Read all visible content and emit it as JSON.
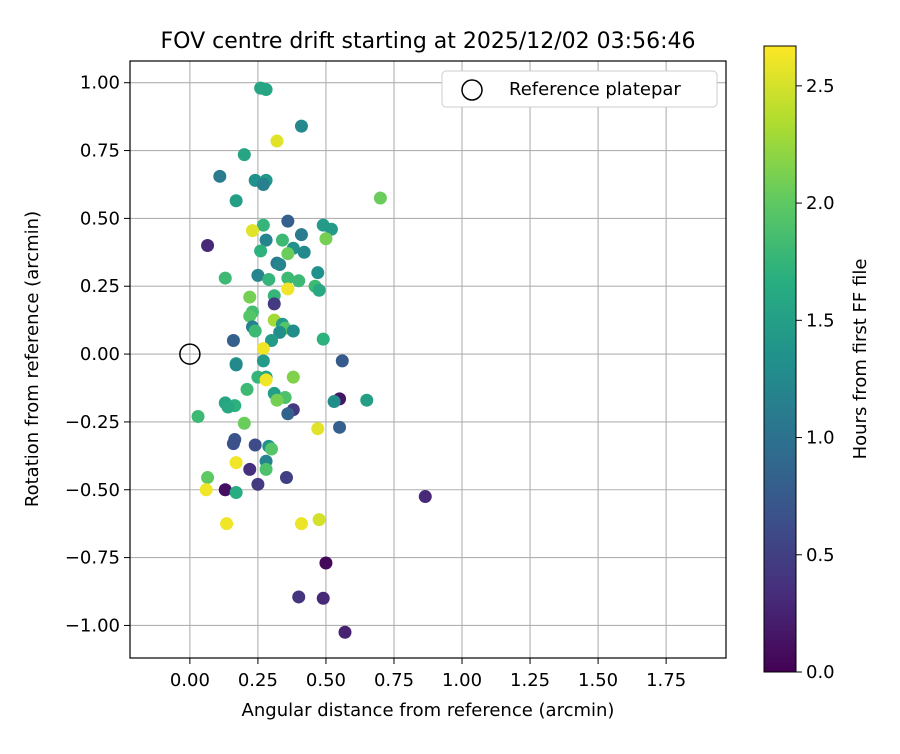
{
  "chart_data": {
    "type": "scatter",
    "title": "FOV centre drift starting at 2025/12/02 03:56:46",
    "xlabel": "Angular distance from reference (arcmin)",
    "ylabel": "Rotation from reference (arcmin)",
    "xlim": [
      -0.22,
      1.97
    ],
    "ylim": [
      -1.12,
      1.08
    ],
    "grid": true,
    "xticks": [
      0.0,
      0.25,
      0.5,
      0.75,
      1.0,
      1.25,
      1.5,
      1.75
    ],
    "xtick_labels": [
      "0.00",
      "0.25",
      "0.50",
      "0.75",
      "1.00",
      "1.25",
      "1.50",
      "1.75"
    ],
    "yticks": [
      -1.0,
      -0.75,
      -0.5,
      -0.25,
      0.0,
      0.25,
      0.5,
      0.75,
      1.0
    ],
    "ytick_labels": [
      "−1.00",
      "−0.75",
      "−0.50",
      "−0.25",
      "0.00",
      "0.25",
      "0.50",
      "0.75",
      "1.00"
    ],
    "legend": {
      "label": "Reference platepar",
      "position": "top-right"
    },
    "reference": {
      "x": 0.0,
      "y": 0.0
    },
    "colorbar": {
      "label": "Hours from first FF file",
      "colormap": "viridis",
      "range": [
        0.0,
        2.67
      ],
      "ticks": [
        0.0,
        0.5,
        1.0,
        1.5,
        2.0,
        2.5
      ],
      "tick_labels": [
        "0.0",
        "0.5",
        "1.0",
        "1.5",
        "2.0",
        "2.5"
      ]
    },
    "points": [
      {
        "x": 0.26,
        "y": 0.98,
        "c": 1.55
      },
      {
        "x": 0.28,
        "y": 0.975,
        "c": 1.55
      },
      {
        "x": 0.41,
        "y": 0.84,
        "c": 1.25
      },
      {
        "x": 0.32,
        "y": 0.785,
        "c": 2.55
      },
      {
        "x": 0.2,
        "y": 0.735,
        "c": 1.55
      },
      {
        "x": 0.11,
        "y": 0.655,
        "c": 1.1
      },
      {
        "x": 0.24,
        "y": 0.64,
        "c": 1.35
      },
      {
        "x": 0.28,
        "y": 0.64,
        "c": 1.4
      },
      {
        "x": 0.27,
        "y": 0.625,
        "c": 1.15
      },
      {
        "x": 0.7,
        "y": 0.575,
        "c": 2.05
      },
      {
        "x": 0.17,
        "y": 0.565,
        "c": 1.5
      },
      {
        "x": 0.36,
        "y": 0.49,
        "c": 0.8
      },
      {
        "x": 0.49,
        "y": 0.475,
        "c": 1.45
      },
      {
        "x": 0.27,
        "y": 0.475,
        "c": 1.75
      },
      {
        "x": 0.23,
        "y": 0.455,
        "c": 2.55
      },
      {
        "x": 0.52,
        "y": 0.46,
        "c": 1.45
      },
      {
        "x": 0.41,
        "y": 0.44,
        "c": 1.1
      },
      {
        "x": 0.5,
        "y": 0.425,
        "c": 2.1
      },
      {
        "x": 0.28,
        "y": 0.42,
        "c": 1.2
      },
      {
        "x": 0.34,
        "y": 0.42,
        "c": 1.8
      },
      {
        "x": 0.065,
        "y": 0.4,
        "c": 0.3
      },
      {
        "x": 0.38,
        "y": 0.39,
        "c": 1.35
      },
      {
        "x": 0.42,
        "y": 0.375,
        "c": 1.25
      },
      {
        "x": 0.26,
        "y": 0.38,
        "c": 1.7
      },
      {
        "x": 0.36,
        "y": 0.37,
        "c": 2.05
      },
      {
        "x": 0.32,
        "y": 0.335,
        "c": 1.1
      },
      {
        "x": 0.33,
        "y": 0.33,
        "c": 1.2
      },
      {
        "x": 0.47,
        "y": 0.3,
        "c": 1.35
      },
      {
        "x": 0.25,
        "y": 0.29,
        "c": 1.2
      },
      {
        "x": 0.13,
        "y": 0.28,
        "c": 1.8
      },
      {
        "x": 0.29,
        "y": 0.275,
        "c": 1.75
      },
      {
        "x": 0.36,
        "y": 0.28,
        "c": 1.8
      },
      {
        "x": 0.4,
        "y": 0.27,
        "c": 1.8
      },
      {
        "x": 0.46,
        "y": 0.25,
        "c": 1.8
      },
      {
        "x": 0.475,
        "y": 0.235,
        "c": 1.6
      },
      {
        "x": 0.36,
        "y": 0.24,
        "c": 2.62
      },
      {
        "x": 0.22,
        "y": 0.21,
        "c": 2.1
      },
      {
        "x": 0.31,
        "y": 0.215,
        "c": 1.75
      },
      {
        "x": 0.31,
        "y": 0.185,
        "c": 0.45
      },
      {
        "x": 0.23,
        "y": 0.155,
        "c": 1.85
      },
      {
        "x": 0.22,
        "y": 0.14,
        "c": 1.95
      },
      {
        "x": 0.31,
        "y": 0.125,
        "c": 2.3
      },
      {
        "x": 0.23,
        "y": 0.1,
        "c": 1.15
      },
      {
        "x": 0.34,
        "y": 0.11,
        "c": 1.45
      },
      {
        "x": 0.35,
        "y": 0.095,
        "c": 1.95
      },
      {
        "x": 0.24,
        "y": 0.085,
        "c": 1.8
      },
      {
        "x": 0.33,
        "y": 0.08,
        "c": 1.3
      },
      {
        "x": 0.38,
        "y": 0.085,
        "c": 1.3
      },
      {
        "x": 0.16,
        "y": 0.05,
        "c": 0.8
      },
      {
        "x": 0.3,
        "y": 0.05,
        "c": 1.45
      },
      {
        "x": 0.49,
        "y": 0.055,
        "c": 1.7
      },
      {
        "x": 0.27,
        "y": 0.02,
        "c": 2.62
      },
      {
        "x": 0.56,
        "y": -0.025,
        "c": 0.75
      },
      {
        "x": 0.27,
        "y": -0.025,
        "c": 1.45
      },
      {
        "x": 0.17,
        "y": -0.035,
        "c": 1.55
      },
      {
        "x": 0.17,
        "y": -0.04,
        "c": 1.25
      },
      {
        "x": 0.25,
        "y": -0.085,
        "c": 1.75
      },
      {
        "x": 0.28,
        "y": -0.085,
        "c": 1.55
      },
      {
        "x": 0.38,
        "y": -0.085,
        "c": 2.15
      },
      {
        "x": 0.28,
        "y": -0.095,
        "c": 2.62
      },
      {
        "x": 0.21,
        "y": -0.13,
        "c": 1.8
      },
      {
        "x": 0.31,
        "y": -0.145,
        "c": 1.5
      },
      {
        "x": 0.35,
        "y": -0.16,
        "c": 1.9
      },
      {
        "x": 0.55,
        "y": -0.165,
        "c": 0.15
      },
      {
        "x": 0.32,
        "y": -0.17,
        "c": 2.1
      },
      {
        "x": 0.53,
        "y": -0.175,
        "c": 1.3
      },
      {
        "x": 0.65,
        "y": -0.17,
        "c": 1.5
      },
      {
        "x": 0.13,
        "y": -0.18,
        "c": 1.55
      },
      {
        "x": 0.165,
        "y": -0.19,
        "c": 1.7
      },
      {
        "x": 0.14,
        "y": -0.195,
        "c": 1.6
      },
      {
        "x": 0.38,
        "y": -0.205,
        "c": 0.45
      },
      {
        "x": 0.36,
        "y": -0.22,
        "c": 0.85
      },
      {
        "x": 0.03,
        "y": -0.23,
        "c": 1.8
      },
      {
        "x": 0.2,
        "y": -0.255,
        "c": 2.05
      },
      {
        "x": 0.55,
        "y": -0.27,
        "c": 0.8
      },
      {
        "x": 0.47,
        "y": -0.275,
        "c": 2.55
      },
      {
        "x": 0.165,
        "y": -0.315,
        "c": 0.7
      },
      {
        "x": 0.16,
        "y": -0.33,
        "c": 0.65
      },
      {
        "x": 0.24,
        "y": -0.335,
        "c": 0.6
      },
      {
        "x": 0.29,
        "y": -0.34,
        "c": 1.35
      },
      {
        "x": 0.3,
        "y": -0.35,
        "c": 1.95
      },
      {
        "x": 0.28,
        "y": -0.395,
        "c": 1.2
      },
      {
        "x": 0.17,
        "y": -0.4,
        "c": 2.62
      },
      {
        "x": 0.28,
        "y": -0.425,
        "c": 1.9
      },
      {
        "x": 0.22,
        "y": -0.425,
        "c": 0.35
      },
      {
        "x": 0.355,
        "y": -0.455,
        "c": 0.5
      },
      {
        "x": 0.065,
        "y": -0.455,
        "c": 2.0
      },
      {
        "x": 0.25,
        "y": -0.48,
        "c": 0.45
      },
      {
        "x": 0.13,
        "y": -0.5,
        "c": 0.1
      },
      {
        "x": 0.06,
        "y": -0.5,
        "c": 2.62
      },
      {
        "x": 0.17,
        "y": -0.51,
        "c": 1.65
      },
      {
        "x": 0.865,
        "y": -0.525,
        "c": 0.3
      },
      {
        "x": 0.475,
        "y": -0.61,
        "c": 2.5
      },
      {
        "x": 0.41,
        "y": -0.625,
        "c": 2.6
      },
      {
        "x": 0.135,
        "y": -0.625,
        "c": 2.62
      },
      {
        "x": 0.5,
        "y": -0.77,
        "c": 0.05
      },
      {
        "x": 0.4,
        "y": -0.895,
        "c": 0.4
      },
      {
        "x": 0.49,
        "y": -0.9,
        "c": 0.3
      },
      {
        "x": 0.57,
        "y": -1.025,
        "c": 0.25
      }
    ]
  }
}
